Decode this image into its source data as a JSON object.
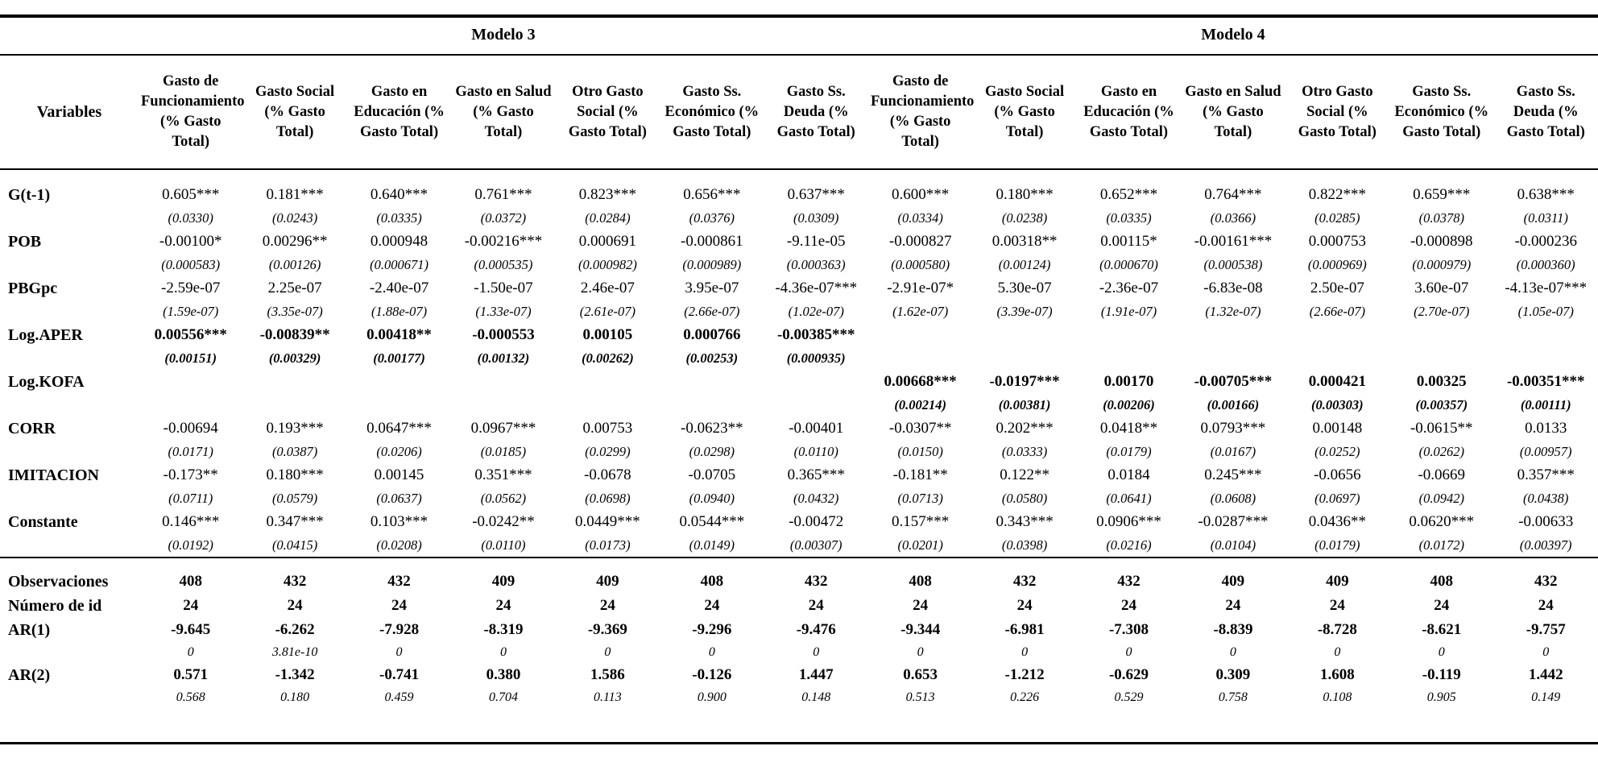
{
  "table": {
    "model_groups": [
      "Modelo 3",
      "Modelo 4"
    ],
    "variables_header": "Variables",
    "column_headers": [
      "Gasto de Funcionamiento (% Gasto Total)",
      "Gasto Social (% Gasto Total)",
      "Gasto en Educación (% Gasto Total)",
      "Gasto en Salud (% Gasto Total)",
      "Otro Gasto Social (% Gasto Total)",
      "Gasto Ss. Económico (% Gasto Total)",
      "Gasto Ss. Deuda (% Gasto Total)"
    ],
    "coef_rows": [
      {
        "name": "G(t-1)",
        "bold_values": false,
        "cells": [
          [
            "0.605***",
            "(0.0330)"
          ],
          [
            "0.181***",
            "(0.0243)"
          ],
          [
            "0.640***",
            "(0.0335)"
          ],
          [
            "0.761***",
            "(0.0372)"
          ],
          [
            "0.823***",
            "(0.0284)"
          ],
          [
            "0.656***",
            "(0.0376)"
          ],
          [
            "0.637***",
            "(0.0309)"
          ],
          [
            "0.600***",
            "(0.0334)"
          ],
          [
            "0.180***",
            "(0.0238)"
          ],
          [
            "0.652***",
            "(0.0335)"
          ],
          [
            "0.764***",
            "(0.0366)"
          ],
          [
            "0.822***",
            "(0.0285)"
          ],
          [
            "0.659***",
            "(0.0378)"
          ],
          [
            "0.638***",
            "(0.0311)"
          ]
        ]
      },
      {
        "name": "POB",
        "bold_values": false,
        "cells": [
          [
            "-0.00100*",
            "(0.000583)"
          ],
          [
            "0.00296**",
            "(0.00126)"
          ],
          [
            "0.000948",
            "(0.000671)"
          ],
          [
            "-0.00216***",
            "(0.000535)"
          ],
          [
            "0.000691",
            "(0.000982)"
          ],
          [
            "-0.000861",
            "(0.000989)"
          ],
          [
            "-9.11e-05",
            "(0.000363)"
          ],
          [
            "-0.000827",
            "(0.000580)"
          ],
          [
            "0.00318**",
            "(0.00124)"
          ],
          [
            "0.00115*",
            "(0.000670)"
          ],
          [
            "-0.00161***",
            "(0.000538)"
          ],
          [
            "0.000753",
            "(0.000969)"
          ],
          [
            "-0.000898",
            "(0.000979)"
          ],
          [
            "-0.000236",
            "(0.000360)"
          ]
        ]
      },
      {
        "name": "PBGpc",
        "bold_values": false,
        "cells": [
          [
            "-2.59e-07",
            "(1.59e-07)"
          ],
          [
            "2.25e-07",
            "(3.35e-07)"
          ],
          [
            "-2.40e-07",
            "(1.88e-07)"
          ],
          [
            "-1.50e-07",
            "(1.33e-07)"
          ],
          [
            "2.46e-07",
            "(2.61e-07)"
          ],
          [
            "3.95e-07",
            "(2.66e-07)"
          ],
          [
            "-4.36e-07***",
            "(1.02e-07)"
          ],
          [
            "-2.91e-07*",
            "(1.62e-07)"
          ],
          [
            "5.30e-07",
            "(3.39e-07)"
          ],
          [
            "-2.36e-07",
            "(1.91e-07)"
          ],
          [
            "-6.83e-08",
            "(1.32e-07)"
          ],
          [
            "2.50e-07",
            "(2.66e-07)"
          ],
          [
            "3.60e-07",
            "(2.70e-07)"
          ],
          [
            "-4.13e-07***",
            "(1.05e-07)"
          ]
        ]
      },
      {
        "name": "Log.APER",
        "bold_values": true,
        "cells": [
          [
            "0.00556***",
            "(0.00151)"
          ],
          [
            "-0.00839**",
            "(0.00329)"
          ],
          [
            "0.00418**",
            "(0.00177)"
          ],
          [
            "-0.000553",
            "(0.00132)"
          ],
          [
            "0.00105",
            "(0.00262)"
          ],
          [
            "0.000766",
            "(0.00253)"
          ],
          [
            "-0.00385***",
            "(0.000935)"
          ],
          [
            "",
            ""
          ],
          [
            "",
            ""
          ],
          [
            "",
            ""
          ],
          [
            "",
            ""
          ],
          [
            "",
            ""
          ],
          [
            "",
            ""
          ],
          [
            "",
            ""
          ]
        ]
      },
      {
        "name": "Log.KOFA",
        "bold_values": true,
        "cells": [
          [
            "",
            ""
          ],
          [
            "",
            ""
          ],
          [
            "",
            ""
          ],
          [
            "",
            ""
          ],
          [
            "",
            ""
          ],
          [
            "",
            ""
          ],
          [
            "",
            ""
          ],
          [
            "0.00668***",
            "(0.00214)"
          ],
          [
            "-0.0197***",
            "(0.00381)"
          ],
          [
            "0.00170",
            "(0.00206)"
          ],
          [
            "-0.00705***",
            "(0.00166)"
          ],
          [
            "0.000421",
            "(0.00303)"
          ],
          [
            "0.00325",
            "(0.00357)"
          ],
          [
            "-0.00351***",
            "(0.00111)"
          ]
        ]
      },
      {
        "name": "CORR",
        "bold_values": false,
        "cells": [
          [
            "-0.00694",
            "(0.0171)"
          ],
          [
            "0.193***",
            "(0.0387)"
          ],
          [
            "0.0647***",
            "(0.0206)"
          ],
          [
            "0.0967***",
            "(0.0185)"
          ],
          [
            "0.00753",
            "(0.0299)"
          ],
          [
            "-0.0623**",
            "(0.0298)"
          ],
          [
            "-0.00401",
            "(0.0110)"
          ],
          [
            "-0.0307**",
            "(0.0150)"
          ],
          [
            "0.202***",
            "(0.0333)"
          ],
          [
            "0.0418**",
            "(0.0179)"
          ],
          [
            "0.0793***",
            "(0.0167)"
          ],
          [
            "0.00148",
            "(0.0252)"
          ],
          [
            "-0.0615**",
            "(0.0262)"
          ],
          [
            "0.0133",
            "(0.00957)"
          ]
        ]
      },
      {
        "name": "IMITACION",
        "bold_values": false,
        "cells": [
          [
            "-0.173**",
            "(0.0711)"
          ],
          [
            "0.180***",
            "(0.0579)"
          ],
          [
            "0.00145",
            "(0.0637)"
          ],
          [
            "0.351***",
            "(0.0562)"
          ],
          [
            "-0.0678",
            "(0.0698)"
          ],
          [
            "-0.0705",
            "(0.0940)"
          ],
          [
            "0.365***",
            "(0.0432)"
          ],
          [
            "-0.181**",
            "(0.0713)"
          ],
          [
            "0.122**",
            "(0.0580)"
          ],
          [
            "0.0184",
            "(0.0641)"
          ],
          [
            "0.245***",
            "(0.0608)"
          ],
          [
            "-0.0656",
            "(0.0697)"
          ],
          [
            "-0.0669",
            "(0.0942)"
          ],
          [
            "0.357***",
            "(0.0438)"
          ]
        ]
      },
      {
        "name": "Constante",
        "bold_values": false,
        "cells": [
          [
            "0.146***",
            "(0.0192)"
          ],
          [
            "0.347***",
            "(0.0415)"
          ],
          [
            "0.103***",
            "(0.0208)"
          ],
          [
            "-0.0242**",
            "(0.0110)"
          ],
          [
            "0.0449***",
            "(0.0173)"
          ],
          [
            "0.0544***",
            "(0.0149)"
          ],
          [
            "-0.00472",
            "(0.00307)"
          ],
          [
            "0.157***",
            "(0.0201)"
          ],
          [
            "0.343***",
            "(0.0398)"
          ],
          [
            "0.0906***",
            "(0.0216)"
          ],
          [
            "-0.0287***",
            "(0.0104)"
          ],
          [
            "0.0436**",
            "(0.0179)"
          ],
          [
            "0.0620***",
            "(0.0172)"
          ],
          [
            "-0.00633",
            "(0.00397)"
          ]
        ]
      }
    ],
    "stat_rows": [
      {
        "name": "Observaciones",
        "values": [
          "408",
          "432",
          "432",
          "409",
          "409",
          "408",
          "432",
          "408",
          "432",
          "432",
          "409",
          "409",
          "408",
          "432"
        ],
        "subs": null
      },
      {
        "name": "Número de id",
        "values": [
          "24",
          "24",
          "24",
          "24",
          "24",
          "24",
          "24",
          "24",
          "24",
          "24",
          "24",
          "24",
          "24",
          "24"
        ],
        "subs": null
      },
      {
        "name": "AR(1)",
        "values": [
          "-9.645",
          "-6.262",
          "-7.928",
          "-8.319",
          "-9.369",
          "-9.296",
          "-9.476",
          "-9.344",
          "-6.981",
          "-7.308",
          "-8.839",
          "-8.728",
          "-8.621",
          "-9.757"
        ],
        "subs": [
          "0",
          "3.81e-10",
          "0",
          "0",
          "0",
          "0",
          "0",
          "0",
          "0",
          "0",
          "0",
          "0",
          "0",
          "0"
        ]
      },
      {
        "name": "AR(2)",
        "values": [
          "0.571",
          "-1.342",
          "-0.741",
          "0.380",
          "1.586",
          "-0.126",
          "1.447",
          "0.653",
          "-1.212",
          "-0.629",
          "0.309",
          "1.608",
          "-0.119",
          "1.442"
        ],
        "subs": [
          "0.568",
          "0.180",
          "0.459",
          "0.704",
          "0.113",
          "0.900",
          "0.148",
          "0.513",
          "0.226",
          "0.529",
          "0.758",
          "0.108",
          "0.905",
          "0.149"
        ]
      }
    ]
  }
}
